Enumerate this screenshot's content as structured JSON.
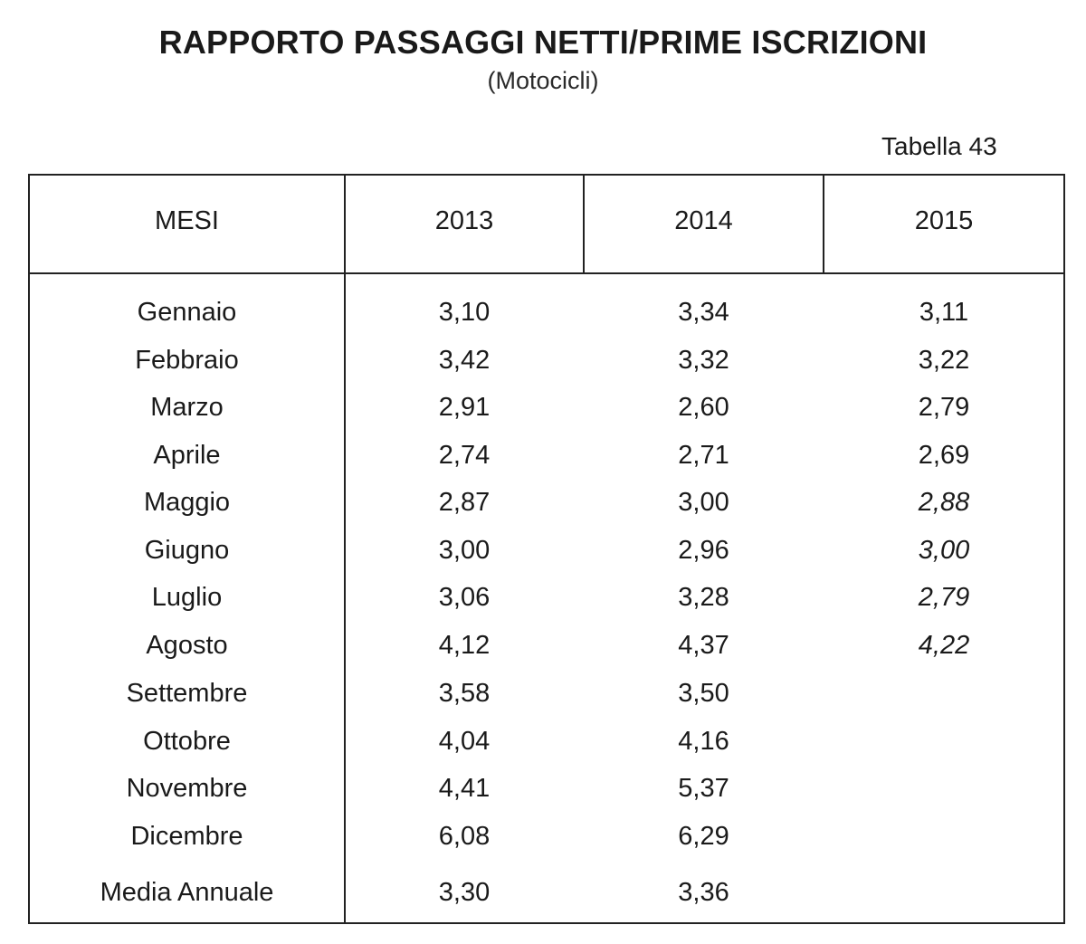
{
  "header": {
    "title": "RAPPORTO PASSAGGI NETTI/PRIME ISCRIZIONI",
    "subtitle": "(Motocicli)",
    "table_number": "Tabella 43"
  },
  "table": {
    "columns": [
      "MESI",
      "2013",
      "2014",
      "2015"
    ],
    "rows": [
      {
        "mese": "Gennaio",
        "y2013": "3,10",
        "y2014": "3,34",
        "y2015": "3,11",
        "y2015_italic": false
      },
      {
        "mese": "Febbraio",
        "y2013": "3,42",
        "y2014": "3,32",
        "y2015": "3,22",
        "y2015_italic": false
      },
      {
        "mese": "Marzo",
        "y2013": "2,91",
        "y2014": "2,60",
        "y2015": "2,79",
        "y2015_italic": false
      },
      {
        "mese": "Aprile",
        "y2013": "2,74",
        "y2014": "2,71",
        "y2015": "2,69",
        "y2015_italic": false
      },
      {
        "mese": "Maggio",
        "y2013": "2,87",
        "y2014": "3,00",
        "y2015": "2,88",
        "y2015_italic": true
      },
      {
        "mese": "Giugno",
        "y2013": "3,00",
        "y2014": "2,96",
        "y2015": "3,00",
        "y2015_italic": true
      },
      {
        "mese": "Luglio",
        "y2013": "3,06",
        "y2014": "3,28",
        "y2015": "2,79",
        "y2015_italic": true
      },
      {
        "mese": "Agosto",
        "y2013": "4,12",
        "y2014": "4,37",
        "y2015": "4,22",
        "y2015_italic": true
      },
      {
        "mese": "Settembre",
        "y2013": "3,58",
        "y2014": "3,50",
        "y2015": ""
      },
      {
        "mese": "Ottobre",
        "y2013": "4,04",
        "y2014": "4,16",
        "y2015": ""
      },
      {
        "mese": "Novembre",
        "y2013": "4,41",
        "y2014": "5,37",
        "y2015": ""
      },
      {
        "mese": "Dicembre",
        "y2013": "6,08",
        "y2014": "6,29",
        "y2015": ""
      }
    ],
    "summary": {
      "mese": "Media Annuale",
      "y2013": "3,30",
      "y2014": "3,36",
      "y2015": ""
    }
  }
}
